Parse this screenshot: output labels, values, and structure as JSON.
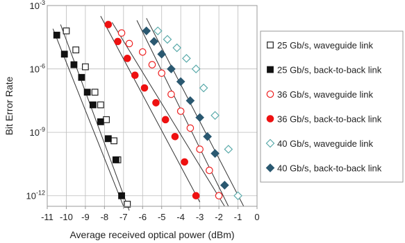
{
  "chart_data": {
    "type": "scatter",
    "xlabel": "Average received optical power (dBm)",
    "ylabel": "Bit Error Rate",
    "xlim": [
      -11,
      0
    ],
    "ylim_log10": [
      -12.5,
      -3
    ],
    "y_scale": "log",
    "x_ticks": [
      -11,
      -10,
      -9,
      -8,
      -7,
      -6,
      -5,
      -4,
      -3,
      -2,
      -1,
      0
    ],
    "y_ticks": [
      {
        "exp": -3,
        "label": "10",
        "sup": "-3"
      },
      {
        "exp": -6,
        "label": "10",
        "sup": "-6"
      },
      {
        "exp": -9,
        "label": "10",
        "sup": "-9"
      },
      {
        "exp": -12,
        "label": "10",
        "sup": "-12"
      }
    ],
    "grid": true,
    "legend_position": "right",
    "series": [
      {
        "name": "25 Gb/s, waveguide link",
        "color": "#222222",
        "marker": "square",
        "filled": false,
        "x": [
          -10.0,
          -9.5,
          -9.0,
          -8.5,
          -8.2,
          -7.9,
          -7.5,
          -7.3,
          -6.8
        ],
        "log10_ber": [
          -4.2,
          -5.1,
          -5.9,
          -7.1,
          -7.7,
          -8.4,
          -9.4,
          -10.3,
          -12.4
        ],
        "fit": [
          [
            -10.3,
            -3.9
          ],
          [
            -6.7,
            -12.7
          ]
        ]
      },
      {
        "name": "25 Gb/s, back-to-back link",
        "color": "#111111",
        "marker": "square",
        "filled": true,
        "x": [
          -10.5,
          -10.1,
          -9.6,
          -9.2,
          -8.9,
          -8.6,
          -8.2,
          -7.8,
          -7.4,
          -7.1
        ],
        "log10_ber": [
          -4.4,
          -5.3,
          -5.8,
          -6.4,
          -7.1,
          -7.7,
          -8.5,
          -9.3,
          -10.3,
          -12.0
        ],
        "fit": [
          [
            -10.7,
            -4.1
          ],
          [
            -7.0,
            -12.5
          ]
        ]
      },
      {
        "name": "36 Gb/s, waveguide link",
        "color": "#ee2222",
        "marker": "circle",
        "filled": false,
        "x": [
          -7.1,
          -6.7,
          -6.0,
          -5.5,
          -5.0,
          -4.5,
          -4.0,
          -3.5,
          -3.0,
          -2.5,
          -2.0
        ],
        "log10_ber": [
          -4.3,
          -4.8,
          -5.2,
          -5.8,
          -6.2,
          -7.2,
          -8.0,
          -8.8,
          -9.8,
          -10.8,
          -12.0
        ],
        "fit": [
          [
            -7.6,
            -3.8
          ],
          [
            -1.7,
            -12.5
          ]
        ]
      },
      {
        "name": "36 Gb/s, back-to-back link",
        "color": "#ee1111",
        "marker": "circle",
        "filled": true,
        "x": [
          -7.8,
          -7.3,
          -6.8,
          -6.4,
          -5.9,
          -5.3,
          -4.8,
          -4.3,
          -3.8,
          -3.2
        ],
        "log10_ber": [
          -3.9,
          -4.7,
          -5.5,
          -6.3,
          -6.9,
          -7.6,
          -8.4,
          -9.2,
          -10.4,
          -12.0
        ],
        "fit": [
          [
            -8.2,
            -3.5
          ],
          [
            -3.0,
            -12.3
          ]
        ]
      },
      {
        "name": "40 Gb/s, waveguide link",
        "color": "#5aaaaa",
        "marker": "diamond",
        "filled": false,
        "x": [
          -5.2,
          -4.7,
          -4.2,
          -3.7,
          -3.2,
          -2.8,
          -2.2,
          -1.5,
          -1.0
        ],
        "log10_ber": [
          -4.2,
          -4.6,
          -5.0,
          -5.5,
          -6.0,
          -6.9,
          -8.2,
          -9.8,
          -12.0
        ],
        "fit": [
          [
            -5.8,
            -3.6
          ],
          [
            -0.7,
            -12.5
          ]
        ]
      },
      {
        "name": "40 Gb/s, back-to-back link",
        "color": "#2a5870",
        "marker": "diamond",
        "filled": true,
        "x": [
          -5.8,
          -5.4,
          -5.0,
          -4.5,
          -4.0,
          -3.5,
          -3.0,
          -2.6,
          -2.2,
          -1.7
        ],
        "log10_ber": [
          -4.2,
          -4.7,
          -5.3,
          -6.0,
          -6.6,
          -7.5,
          -8.3,
          -9.2,
          -10.0,
          -11.5
        ],
        "fit": [
          [
            -6.3,
            -3.7
          ],
          [
            -1.5,
            -12.5
          ]
        ]
      }
    ]
  }
}
